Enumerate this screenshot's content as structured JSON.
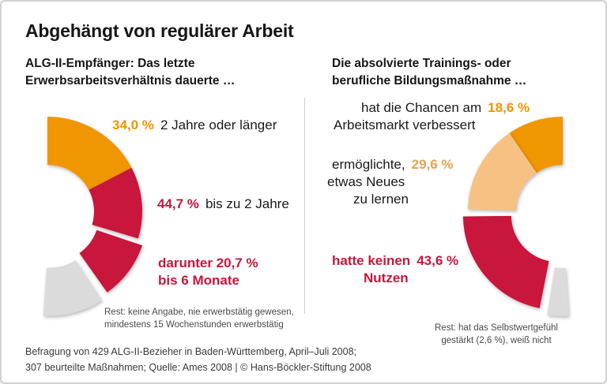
{
  "title": "Abgehängt von regulärer Arbeit",
  "colors": {
    "orange": "#F09600",
    "light_orange": "#F7C183",
    "red": "#C8163C",
    "gray": "#DBDBDB",
    "pct_light_orange_text": "#E9A150"
  },
  "left": {
    "subtitle1": "ALG-II-Empfänger: Das letzte",
    "subtitle2": "Erwerbsarbeitsverhältnis dauerte …",
    "label1_value": "34,0 %",
    "label1_text": "2 Jahre oder länger",
    "label2_value": "44,7 %",
    "label2_text": "bis zu 2 Jahre",
    "label3_line1": "darunter 20,7 %",
    "label3_line2": "bis 6 Monate",
    "note1": "Rest: keine Angabe, nie erwerbstätig gewesen,",
    "note2": "mindestens 15 Wochenstunden erwerbstätig"
  },
  "right": {
    "subtitle1": "Die absolvierte Trainings- oder",
    "subtitle2": "berufliche Bildungsmaßnahme …",
    "label1_text": "hat die Chancen am",
    "label1_value": "18,6 %",
    "label1_text2": "Arbeitsmarkt verbessert",
    "label2_text": "ermöglichte,",
    "label2_value": "29,6 %",
    "label2_text2": "etwas Neues",
    "label2_text3": "zu lernen",
    "label3_text": "hatte keinen",
    "label3_value": "43,6 %",
    "label3_text2": "Nutzen",
    "note1": "Rest: hat das Selbstwertgefühl",
    "note2": "gestärkt (2,6 %), weiß nicht"
  },
  "footer": {
    "line1": "Befragung von 429 ALG-II-Bezieher in Baden-Württemberg, April–Juli 2008;",
    "line2": "307 beurteilte Maßnahmen; Quelle: Ames 2008 | © Hans-Böckler-Stiftung 2008"
  },
  "chart_data": [
    {
      "type": "donut",
      "panel": "left",
      "title": "ALG-II-Empfänger: Das letzte Erwerbsarbeitsverhältnis dauerte …",
      "unit": "percent",
      "direction": "clockwise",
      "start_angle_deg": 0,
      "degrees_per_percent": 1.84,
      "segments": [
        {
          "label": "2 Jahre oder länger",
          "value": 34.0,
          "color": "#F09600",
          "exploded": false
        },
        {
          "label": "bis zu 2 Jahre (Anteil über 6 Monate)",
          "value": 24.0,
          "color": "#C8163C",
          "exploded": false
        },
        {
          "label": "darunter bis 6 Monate",
          "value": 20.7,
          "color": "#C8163C",
          "exploded": true
        },
        {
          "label": "Rest: keine Angabe, nie erwerbstätig gewesen, mindestens 15 Wochenstunden erwerbstätig",
          "value": 21.3,
          "color": "#DBDBDB",
          "exploded": true
        }
      ],
      "annotations": {
        "bis_zu_2_jahre_gesamt": 44.7,
        "darunter_bis_6_monate": 20.7
      }
    },
    {
      "type": "donut",
      "panel": "right",
      "title": "Die absolvierte Trainings- oder berufliche Bildungsmaßnahme …",
      "unit": "percent",
      "direction": "counterclockwise",
      "start_angle_deg": 0,
      "degrees_per_percent": 1.84,
      "segments": [
        {
          "label": "hat die Chancen am Arbeitsmarkt verbessert",
          "value": 18.6,
          "color": "#F09600",
          "exploded": false
        },
        {
          "label": "ermöglichte, etwas Neues zu lernen",
          "value": 29.6,
          "color": "#F7C183",
          "exploded": false
        },
        {
          "label": "hatte keinen Nutzen",
          "value": 43.6,
          "color": "#C8163C",
          "exploded": true
        },
        {
          "label": "Rest: hat das Selbstwertgefühl gestärkt (2,6 %), weiß nicht",
          "value": 8.2,
          "color": "#DBDBDB",
          "exploded": true
        }
      ],
      "annotations": {
        "selbstwertgefuehl_gestaerkt": 2.6
      }
    }
  ]
}
